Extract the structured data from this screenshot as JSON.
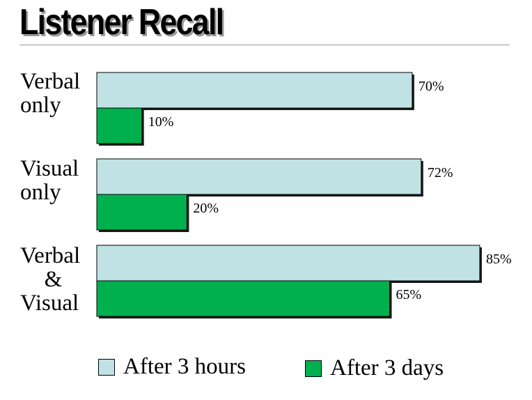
{
  "title": "Listener Recall",
  "colors": {
    "after_3_hours": "#c0e2e4",
    "after_3_days": "#00b04f",
    "bar_border": "#000000",
    "bar_shadow": "#1a1a1a"
  },
  "chart_data": {
    "type": "bar",
    "orientation": "horizontal",
    "title": "Listener Recall",
    "categories": [
      [
        "Verbal",
        "only"
      ],
      [
        "Visual",
        "only"
      ],
      [
        "Verbal",
        "&",
        "Visual"
      ]
    ],
    "series": [
      {
        "name": "After 3 hours",
        "values": [
          70,
          72,
          85
        ],
        "labels": [
          "70%",
          "72%",
          "85%"
        ]
      },
      {
        "name": "After 3 days",
        "values": [
          10,
          20,
          65
        ],
        "labels": [
          "10%",
          "20%",
          "65%"
        ]
      }
    ],
    "xlim": [
      0,
      100
    ],
    "unit": "%",
    "grid": false,
    "legend": "bottom"
  }
}
